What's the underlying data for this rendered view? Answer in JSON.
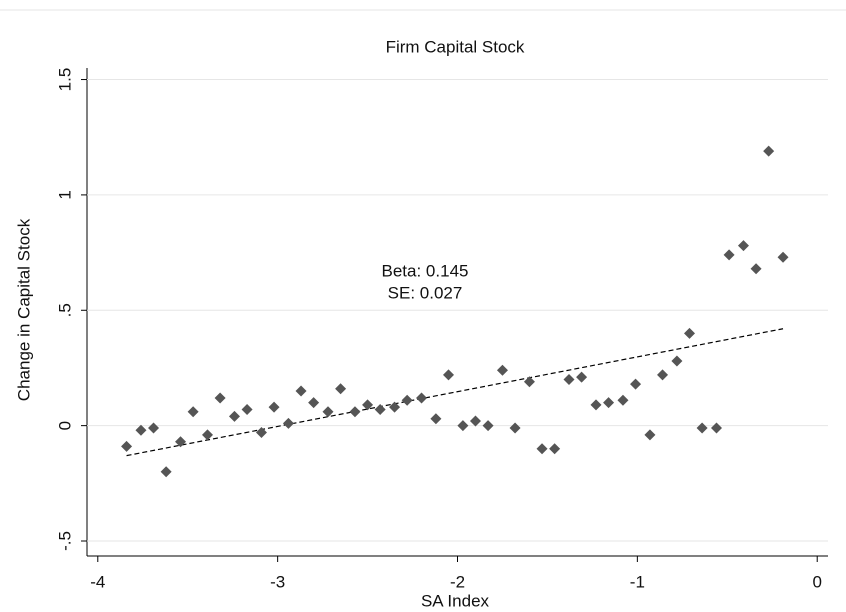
{
  "chart_data": {
    "type": "scatter",
    "title": "Firm Capital Stock",
    "x_label": "SA Index",
    "y_label": "Change in Capital Stock",
    "x": [
      -3.84,
      -3.76,
      -3.69,
      -3.62,
      -3.54,
      -3.47,
      -3.39,
      -3.32,
      -3.24,
      -3.17,
      -3.09,
      -3.02,
      -2.94,
      -2.87,
      -2.8,
      -2.72,
      -2.65,
      -2.57,
      -2.5,
      -2.43,
      -2.35,
      -2.28,
      -2.2,
      -2.12,
      -2.05,
      -1.97,
      -1.9,
      -1.83,
      -1.75,
      -1.68,
      -1.6,
      -1.53,
      -1.46,
      -1.38,
      -1.31,
      -1.23,
      -1.16,
      -1.08,
      -1.01,
      -0.93,
      -0.86,
      -0.78,
      -0.71,
      -0.64,
      -0.56,
      -0.49,
      -0.41,
      -0.34,
      -0.27,
      -0.19
    ],
    "values": [
      -0.09,
      -0.02,
      -0.01,
      -0.2,
      -0.07,
      0.06,
      -0.04,
      0.12,
      0.04,
      0.07,
      -0.03,
      0.08,
      0.01,
      0.15,
      0.1,
      0.06,
      0.16,
      0.06,
      0.09,
      0.07,
      0.08,
      0.11,
      0.12,
      0.03,
      0.22,
      0.0,
      0.02,
      0.0,
      0.24,
      -0.01,
      0.19,
      -0.1,
      -0.1,
      0.2,
      0.21,
      0.09,
      0.1,
      0.11,
      0.18,
      -0.04,
      0.22,
      0.28,
      0.4,
      -0.01,
      -0.01,
      0.74,
      0.78,
      0.68,
      1.19,
      0.73
    ],
    "color": "#555555",
    "fit_line": {
      "x": [
        -3.84,
        -0.19
      ],
      "values": [
        -0.13,
        0.42
      ],
      "color": "#000000"
    },
    "annotations": [
      "Beta: 0.145",
      "SE: 0.027"
    ],
    "xlim": [
      -4.06,
      0.06
    ],
    "xticks": [
      -4,
      -3,
      -2,
      -1,
      0
    ],
    "ylim": [
      -0.565,
      1.55
    ],
    "yticks": [
      {
        "value": -0.5,
        "label": "-.5"
      },
      0,
      {
        "value": 0.5,
        "label": ".5"
      },
      1,
      1.5
    ],
    "grid": true
  }
}
